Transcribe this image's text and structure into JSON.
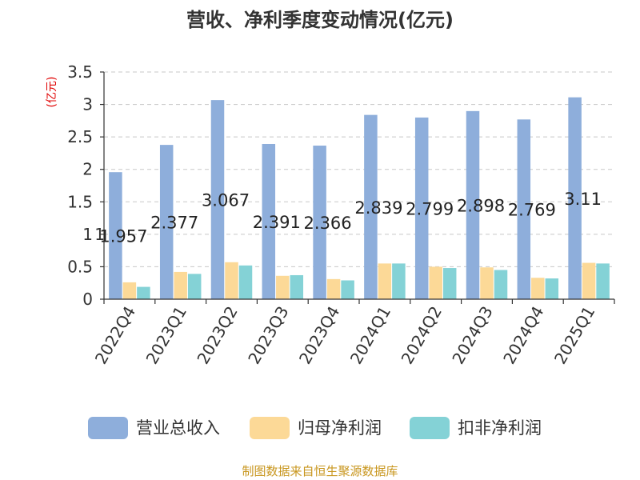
{
  "chart_data": {
    "type": "bar",
    "title": "营收、净利季度变动情况(亿元)",
    "ylabel": "(亿元)",
    "xlabel": "",
    "ylim": [
      0,
      3.5
    ],
    "yticks": [
      0,
      0.5,
      1,
      1.5,
      2,
      2.5,
      3,
      3.5
    ],
    "ytick_labels": [
      "0",
      "0.5",
      "1",
      "1.5",
      "2",
      "2.5",
      "3",
      "3.5"
    ],
    "grid": "horizontal-dashed",
    "legend_placement": "bottom",
    "categories": [
      "2022Q4",
      "2023Q1",
      "2023Q2",
      "2023Q3",
      "2023Q4",
      "2024Q1",
      "2024Q2",
      "2024Q3",
      "2024Q4",
      "2025Q1"
    ],
    "series": [
      {
        "name": "营业总收入",
        "color": "#8eaedb",
        "values": [
          1.957,
          2.377,
          3.067,
          2.391,
          2.366,
          2.839,
          2.799,
          2.898,
          2.769,
          3.11
        ],
        "data_labels": [
          "1.957",
          "2.377",
          "3.067",
          "2.391",
          "2.366",
          "2.839",
          "2.799",
          "2.898",
          "2.769",
          "3.11"
        ]
      },
      {
        "name": "归母净利润",
        "color": "#fcd997",
        "values": [
          0.26,
          0.42,
          0.57,
          0.36,
          0.31,
          0.55,
          0.5,
          0.49,
          0.33,
          0.56
        ]
      },
      {
        "name": "扣非净利润",
        "color": "#84d2d6",
        "values": [
          0.19,
          0.39,
          0.52,
          0.37,
          0.29,
          0.55,
          0.48,
          0.45,
          0.32,
          0.55
        ]
      }
    ],
    "stray_axis_text": "1"
  },
  "source_note": "制图数据来自恒生聚源数据库",
  "colors": {
    "title": "#333333",
    "axis": "#333333",
    "grid": "#c8c8c8",
    "ylabel": "#e00000",
    "source": "#c8961e"
  }
}
